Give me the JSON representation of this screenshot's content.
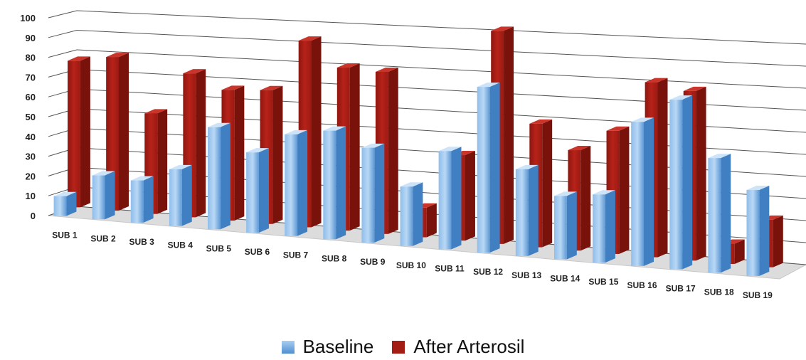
{
  "chart_data": {
    "type": "bar",
    "title": "",
    "xlabel": "",
    "ylabel": "",
    "ylim": [
      0,
      100
    ],
    "yticks": [
      0,
      10,
      20,
      30,
      40,
      50,
      60,
      70,
      80,
      90,
      100
    ],
    "grid": true,
    "legend_position": "bottom",
    "categories": [
      "SUB 1",
      "SUB 2",
      "SUB 3",
      "SUB 4",
      "SUB 5",
      "SUB 6",
      "SUB 7",
      "SUB 8",
      "SUB 9",
      "SUB 10",
      "SUB 11",
      "SUB 12",
      "SUB 13",
      "SUB 14",
      "SUB 15",
      "SUB 16",
      "SUB 17",
      "SUB 18",
      "SUB 19"
    ],
    "series": [
      {
        "name": "Baseline",
        "color": "#5b9bd5",
        "values": [
          10,
          22,
          21,
          28,
          50,
          39,
          49,
          52,
          45,
          28,
          46,
          77,
          40,
          29,
          31,
          65,
          76,
          51,
          38
        ]
      },
      {
        "name": "After Arterosil",
        "color": "#a41d14",
        "values": [
          74,
          77,
          50,
          71,
          64,
          65,
          90,
          78,
          77,
          14,
          40,
          99,
          57,
          46,
          56,
          79,
          76,
          9,
          21
        ]
      }
    ]
  }
}
